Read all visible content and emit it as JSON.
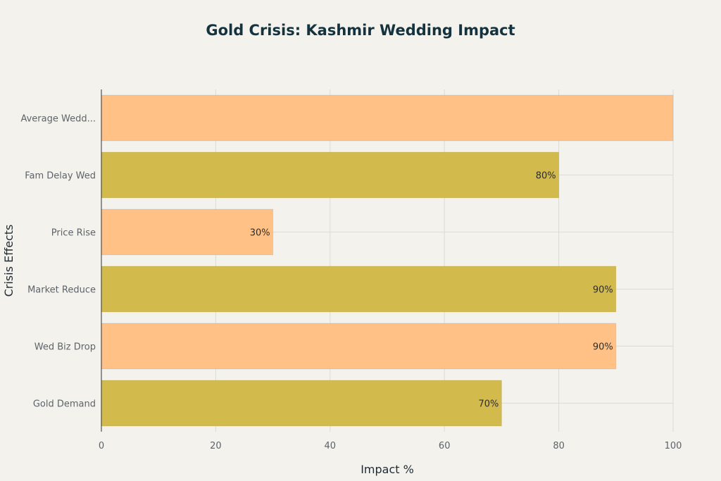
{
  "chart_data": {
    "type": "bar",
    "orientation": "horizontal",
    "title": "Gold Crisis: Kashmir Wedding Impact",
    "xlabel": "Impact %",
    "ylabel": "Crisis Effects",
    "xlim": [
      0,
      100
    ],
    "xticks": [
      "0",
      "20",
      "40",
      "60",
      "80",
      "100"
    ],
    "grid": true,
    "categories": [
      "Average Wedd...",
      "Fam Delay Wed",
      "Price Rise",
      "Market Reduce",
      "Wed Biz Drop",
      "Gold Demand"
    ],
    "values": [
      100,
      80,
      30,
      90,
      90,
      70
    ],
    "data_labels": [
      "",
      "80%",
      "30%",
      "90%",
      "90%",
      "70%"
    ],
    "colors": [
      "#ffc185",
      "#d2ba4c",
      "#ffc185",
      "#d2ba4c",
      "#ffc185",
      "#d2ba4c"
    ],
    "grid_color": "#dcdbd6",
    "axis_color": "#333333"
  }
}
